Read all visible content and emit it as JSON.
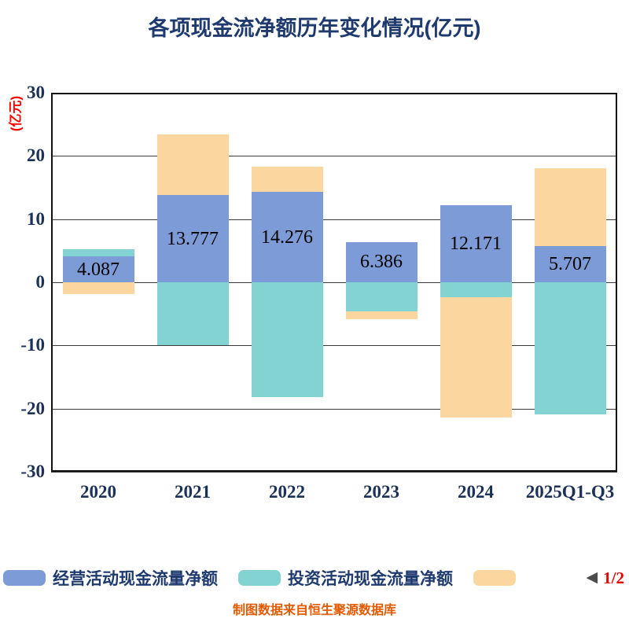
{
  "title": "各项现金流净额历年变化情况(亿元)",
  "ylabel": "(亿元)",
  "footer": {
    "caption": "制图数据来自恒生聚源数据库"
  },
  "legend": {
    "items": [
      {
        "label": "经营活动现金流量净额",
        "color": "#7d9bd6"
      },
      {
        "label": "投资活动现金流量净额",
        "color": "#82d3d2"
      },
      {
        "label": "",
        "color": "#fbd79f"
      }
    ],
    "pagination": {
      "arrow": "◀",
      "label": "1/2"
    }
  },
  "chart_data": {
    "type": "bar",
    "stacked": true,
    "title": "各项现金流净额历年变化情况(亿元)",
    "ylabel": "(亿元)",
    "categories": [
      "2020",
      "2021",
      "2022",
      "2023",
      "2024",
      "2025Q1-Q3"
    ],
    "series": [
      {
        "name": "经营活动现金流量净额",
        "color": "#7d9bd6",
        "values": [
          4.087,
          13.777,
          14.276,
          6.386,
          12.171,
          5.707
        ],
        "data_labels": [
          "4.087",
          "13.777",
          "14.276",
          "6.386",
          "12.171",
          "5.707"
        ]
      },
      {
        "name": "投资活动现金流量净额",
        "color": "#82d3d2",
        "values": [
          1.1,
          -10.0,
          -18.2,
          -4.6,
          -2.4,
          -20.9
        ]
      },
      {
        "name": "",
        "color": "#fbd79f",
        "values": [
          -1.9,
          9.6,
          4.0,
          -1.3,
          -19.0,
          12.4
        ]
      }
    ],
    "ylim": [
      -30,
      30
    ],
    "yticks": [
      30,
      20,
      10,
      0,
      -10,
      -20,
      -30
    ],
    "grid": true,
    "legend_position": "bottom"
  }
}
